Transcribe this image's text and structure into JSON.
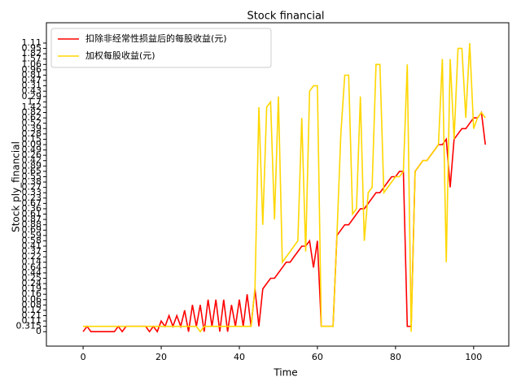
{
  "chart_data": {
    "type": "line",
    "title": "Stock financial",
    "x_label": "Time",
    "y_label": "Stock ply_financial",
    "x": [
      0,
      1,
      2,
      3,
      4,
      5,
      6,
      7,
      8,
      9,
      10,
      11,
      12,
      13,
      14,
      15,
      16,
      17,
      18,
      19,
      20,
      21,
      22,
      23,
      24,
      25,
      26,
      27,
      28,
      29,
      30,
      31,
      32,
      33,
      34,
      35,
      36,
      37,
      38,
      39,
      40,
      41,
      42,
      43,
      44,
      45,
      46,
      47,
      48,
      49,
      50,
      51,
      52,
      53,
      54,
      55,
      56,
      57,
      58,
      59,
      60,
      61,
      62,
      63,
      64,
      65,
      66,
      67,
      68,
      69,
      70,
      71,
      72,
      73,
      74,
      75,
      76,
      77,
      78,
      79,
      80,
      81,
      82,
      83,
      84,
      85,
      86,
      87,
      88,
      89,
      90,
      91,
      92,
      93,
      94,
      95,
      96,
      97,
      98,
      99,
      100,
      101,
      102,
      103
    ],
    "series": [
      {
        "name": "扣除非经常性损益后的每股收益(元)",
        "color": "#ff0000",
        "values": [
          0,
          1,
          0,
          0,
          0,
          0,
          0,
          0,
          0,
          1,
          0,
          1,
          1,
          1,
          1,
          1,
          1,
          0,
          1,
          0,
          2,
          1,
          3,
          1,
          3,
          1,
          4,
          0,
          5,
          1,
          5,
          0,
          6,
          1,
          6,
          0,
          6,
          0,
          5,
          1,
          6,
          1,
          7,
          1,
          8,
          1,
          8,
          9,
          10,
          10,
          11,
          12,
          13,
          13,
          14,
          15,
          16,
          16,
          17,
          12,
          17,
          1,
          1,
          1,
          1,
          18,
          19,
          20,
          20,
          21,
          22,
          23,
          23,
          24,
          25,
          26,
          26,
          27,
          28,
          29,
          29,
          30,
          30,
          1,
          1,
          30,
          31,
          32,
          32,
          33,
          34,
          35,
          35,
          36,
          27,
          36,
          37,
          38,
          38,
          39,
          40,
          40,
          41,
          35
        ]
      },
      {
        "name": "加权每股收益(元)",
        "color": "#ffd700",
        "values": [
          1,
          1,
          1,
          1,
          1,
          1,
          1,
          1,
          1,
          1,
          1,
          1,
          1,
          1,
          1,
          1,
          1,
          1,
          1,
          1,
          1,
          1,
          1,
          1,
          1,
          1,
          1,
          1,
          1,
          1,
          0,
          1,
          1,
          1,
          1,
          1,
          1,
          1,
          1,
          1,
          1,
          1,
          1,
          1,
          8,
          42,
          20,
          42,
          43,
          21,
          44,
          13,
          14,
          15,
          16,
          17,
          40,
          15,
          45,
          46,
          46,
          1,
          1,
          1,
          1,
          18,
          37,
          48,
          48,
          22,
          23,
          44,
          17,
          26,
          27,
          50,
          50,
          26,
          27,
          28,
          29,
          29,
          30,
          50,
          0,
          30,
          31,
          32,
          32,
          33,
          34,
          35,
          51,
          13,
          51,
          36,
          53,
          53,
          40,
          54,
          38,
          40,
          41,
          40
        ]
      }
    ],
    "xlim": [
      -9.4,
      109
    ],
    "xticks": [
      0,
      20,
      40,
      60,
      80,
      100
    ],
    "ylim": [
      -2.7,
      57.8
    ],
    "yticks": [
      {
        "value": 0,
        "label": "0"
      },
      {
        "value": 1,
        "label": "0.315"
      },
      {
        "value": 2,
        "label": "0.11"
      },
      {
        "value": 3,
        "label": "0.21"
      },
      {
        "value": 4,
        "label": "0.12"
      },
      {
        "value": 5,
        "label": "0.08"
      },
      {
        "value": 6,
        "label": "0.06"
      },
      {
        "value": 7,
        "label": "0.16"
      },
      {
        "value": 8,
        "label": "0.19"
      },
      {
        "value": 9,
        "label": "0.24"
      },
      {
        "value": 10,
        "label": "0.25"
      },
      {
        "value": 11,
        "label": "0.44"
      },
      {
        "value": 12,
        "label": "0.64"
      },
      {
        "value": 13,
        "label": "0.14"
      },
      {
        "value": 14,
        "label": "0.22"
      },
      {
        "value": 15,
        "label": "0.37"
      },
      {
        "value": 16,
        "label": "0.41"
      },
      {
        "value": 17,
        "label": "0.58"
      },
      {
        "value": 18,
        "label": "0.59"
      },
      {
        "value": 19,
        "label": "0.69"
      },
      {
        "value": 20,
        "label": "0.88"
      },
      {
        "value": 21,
        "label": "0.87"
      },
      {
        "value": 22,
        "label": "0.61"
      },
      {
        "value": 23,
        "label": "0.36"
      },
      {
        "value": 24,
        "label": "0.67"
      },
      {
        "value": 25,
        "label": "0.23"
      },
      {
        "value": 26,
        "label": "0.33"
      },
      {
        "value": 27,
        "label": "0.27"
      },
      {
        "value": 28,
        "label": "0.38"
      },
      {
        "value": 29,
        "label": "0.55"
      },
      {
        "value": 30,
        "label": "0.65"
      },
      {
        "value": 31,
        "label": "0.89"
      },
      {
        "value": 32,
        "label": "0.42"
      },
      {
        "value": 33,
        "label": "0.26"
      },
      {
        "value": 34,
        "label": "0.49"
      },
      {
        "value": 35,
        "label": "0.09"
      },
      {
        "value": 36,
        "label": "0.15"
      },
      {
        "value": 37,
        "label": "0.28"
      },
      {
        "value": 38,
        "label": "0.39"
      },
      {
        "value": 39,
        "label": "0.52"
      },
      {
        "value": 40,
        "label": "0.62"
      },
      {
        "value": 41,
        "label": "0.82"
      },
      {
        "value": 42,
        "label": "1.42"
      },
      {
        "value": 43,
        "label": "1.7"
      },
      {
        "value": 44,
        "label": "0.29"
      },
      {
        "value": 45,
        "label": "0.43"
      },
      {
        "value": 46,
        "label": "0.31"
      },
      {
        "value": 47,
        "label": "0.47"
      },
      {
        "value": 48,
        "label": "0.81"
      },
      {
        "value": 49,
        "label": "0.96"
      },
      {
        "value": 50,
        "label": "1.06"
      },
      {
        "value": 51,
        "label": "1.57"
      },
      {
        "value": 52,
        "label": "1.82"
      },
      {
        "value": 53,
        "label": "0.95"
      },
      {
        "value": 54,
        "label": "1.11"
      }
    ],
    "legend": "upper left"
  }
}
